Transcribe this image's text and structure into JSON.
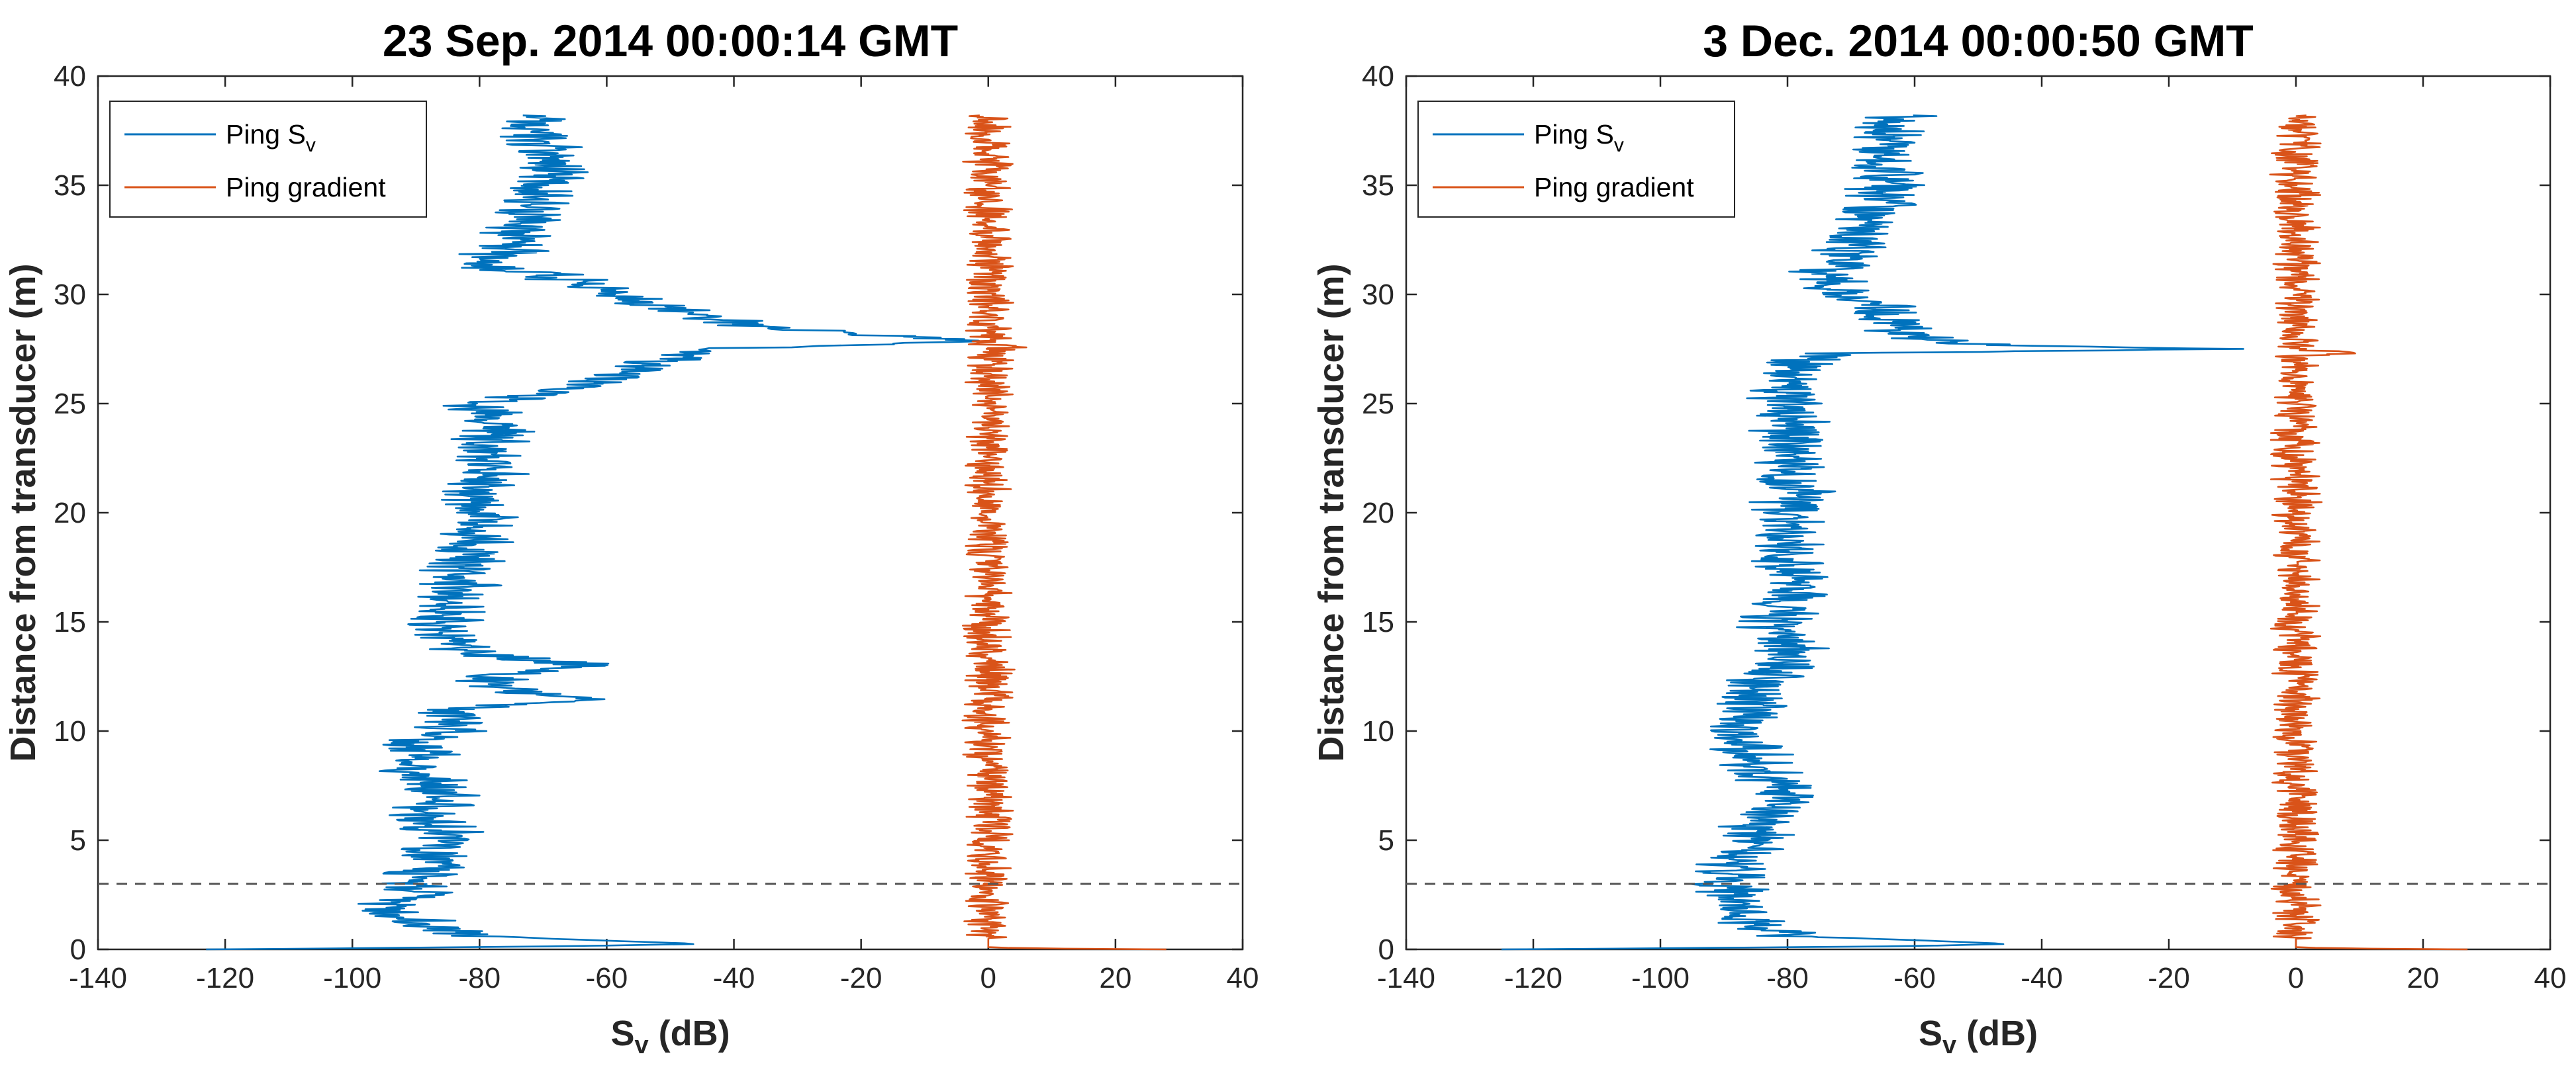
{
  "chart_data": [
    {
      "type": "line",
      "title": "23 Sep. 2014 00:00:14 GMT",
      "xlabel_main": "S",
      "xlabel_sub": "v",
      "xlabel_rest": " (dB)",
      "ylabel": "Distance from transducer (m)",
      "xlim": [
        -140,
        40
      ],
      "ylim": [
        0,
        40
      ],
      "xticks": [
        -140,
        -120,
        -100,
        -80,
        -60,
        -40,
        -20,
        0,
        20,
        40
      ],
      "yticks": [
        0,
        5,
        10,
        15,
        20,
        25,
        30,
        35,
        40
      ],
      "reference_line": {
        "y": 3,
        "style": "dashed"
      },
      "legend": {
        "position": "top-left",
        "entries": [
          {
            "label_main": "Ping S",
            "label_sub": "v"
          },
          {
            "label_main": "Ping gradient",
            "label_sub": ""
          }
        ]
      },
      "series": [
        {
          "name": "Ping Sv",
          "color": "#0072BD",
          "profile": [
            [
              0.0,
              -123
            ],
            [
              0.05,
              -100
            ],
            [
              0.15,
              -65
            ],
            [
              0.25,
              -45
            ],
            [
              0.4,
              -60
            ],
            [
              0.6,
              -80
            ],
            [
              1.0,
              -88
            ],
            [
              1.5,
              -92
            ],
            [
              2.0,
              -95
            ],
            [
              2.5,
              -88
            ],
            [
              3.0,
              -92
            ],
            [
              3.5,
              -90
            ],
            [
              4.0,
              -86
            ],
            [
              4.5,
              -88
            ],
            [
              5.0,
              -85
            ],
            [
              6.0,
              -88
            ],
            [
              7.0,
              -86
            ],
            [
              8.0,
              -90
            ],
            [
              9.0,
              -88
            ],
            [
              9.5,
              -92
            ],
            [
              10.0,
              -85
            ],
            [
              11.0,
              -83
            ],
            [
              11.5,
              -62
            ],
            [
              12.0,
              -80
            ],
            [
              12.5,
              -78
            ],
            [
              13.0,
              -62
            ],
            [
              13.5,
              -80
            ],
            [
              14.0,
              -84
            ],
            [
              15.0,
              -86
            ],
            [
              16.0,
              -84
            ],
            [
              17.0,
              -83
            ],
            [
              18.0,
              -82
            ],
            [
              19.0,
              -80
            ],
            [
              20.0,
              -79
            ],
            [
              21.0,
              -80
            ],
            [
              22.0,
              -78
            ],
            [
              23.0,
              -78
            ],
            [
              24.0,
              -77
            ],
            [
              25.0,
              -80
            ],
            [
              25.5,
              -68
            ],
            [
              26.0,
              -63
            ],
            [
              26.5,
              -55
            ],
            [
              27.0,
              -50
            ],
            [
              27.5,
              -44
            ],
            [
              27.8,
              -5
            ],
            [
              28.0,
              -8
            ],
            [
              28.2,
              -20
            ],
            [
              28.5,
              -35
            ],
            [
              29.0,
              -46
            ],
            [
              29.5,
              -52
            ],
            [
              30.0,
              -57
            ],
            [
              30.5,
              -64
            ],
            [
              31.0,
              -70
            ],
            [
              31.3,
              -82
            ],
            [
              32.0,
              -75
            ],
            [
              33.0,
              -73
            ],
            [
              34.0,
              -72
            ],
            [
              35.0,
              -70
            ],
            [
              36.0,
              -68
            ],
            [
              37.0,
              -70
            ],
            [
              38.0,
              -72
            ],
            [
              38.2,
              -70
            ]
          ],
          "noise_amplitude": 5
        },
        {
          "name": "Ping gradient",
          "color": "#D95319",
          "profile": [
            [
              0.0,
              28
            ],
            [
              0.05,
              5
            ],
            [
              0.1,
              0
            ],
            [
              27.5,
              0
            ],
            [
              27.6,
              6
            ],
            [
              27.7,
              0
            ],
            [
              38.2,
              0
            ]
          ],
          "noise_amplitude": 3
        }
      ]
    },
    {
      "type": "line",
      "title": "3 Dec. 2014 00:00:50 GMT",
      "xlabel_main": "S",
      "xlabel_sub": "v",
      "xlabel_rest": " (dB)",
      "ylabel": "Distance from transducer (m)",
      "xlim": [
        -140,
        40
      ],
      "ylim": [
        0,
        40
      ],
      "xticks": [
        -140,
        -120,
        -100,
        -80,
        -60,
        -40,
        -20,
        0,
        20,
        40
      ],
      "yticks": [
        0,
        5,
        10,
        15,
        20,
        25,
        30,
        35,
        40
      ],
      "reference_line": {
        "y": 3,
        "style": "dashed"
      },
      "legend": {
        "position": "top-left",
        "entries": [
          {
            "label_main": "Ping S",
            "label_sub": "v"
          },
          {
            "label_main": "Ping gradient",
            "label_sub": ""
          }
        ]
      },
      "series": [
        {
          "name": "Ping Sv",
          "color": "#0072BD",
          "profile": [
            [
              0.0,
              -125
            ],
            [
              0.05,
              -100
            ],
            [
              0.15,
              -60
            ],
            [
              0.25,
              -45
            ],
            [
              0.4,
              -58
            ],
            [
              0.6,
              -78
            ],
            [
              1.0,
              -86
            ],
            [
              2.0,
              -88
            ],
            [
              3.0,
              -90
            ],
            [
              4.0,
              -88
            ],
            [
              5.0,
              -86
            ],
            [
              6.0,
              -84
            ],
            [
              7.0,
              -80
            ],
            [
              8.0,
              -84
            ],
            [
              9.0,
              -86
            ],
            [
              10.0,
              -88
            ],
            [
              11.0,
              -86
            ],
            [
              12.0,
              -84
            ],
            [
              13.0,
              -80
            ],
            [
              14.0,
              -80
            ],
            [
              15.0,
              -82
            ],
            [
              16.0,
              -80
            ],
            [
              17.0,
              -79
            ],
            [
              18.0,
              -80
            ],
            [
              19.0,
              -81
            ],
            [
              20.0,
              -80
            ],
            [
              21.0,
              -79
            ],
            [
              22.0,
              -80
            ],
            [
              23.0,
              -80
            ],
            [
              24.0,
              -79
            ],
            [
              25.0,
              -80
            ],
            [
              26.0,
              -80
            ],
            [
              27.0,
              -78
            ],
            [
              27.3,
              -72
            ],
            [
              27.5,
              -10
            ],
            [
              27.7,
              -50
            ],
            [
              28.0,
              -60
            ],
            [
              28.5,
              -62
            ],
            [
              29.0,
              -64
            ],
            [
              29.5,
              -65
            ],
            [
              30.0,
              -72
            ],
            [
              31.0,
              -74
            ],
            [
              32.0,
              -70
            ],
            [
              33.0,
              -68
            ],
            [
              34.0,
              -66
            ],
            [
              35.0,
              -64
            ],
            [
              36.0,
              -66
            ],
            [
              37.0,
              -64
            ],
            [
              38.0,
              -64
            ],
            [
              38.2,
              -62
            ]
          ],
          "noise_amplitude": 5
        },
        {
          "name": "Ping gradient",
          "color": "#D95319",
          "profile": [
            [
              0.0,
              27
            ],
            [
              0.05,
              5
            ],
            [
              0.1,
              0
            ],
            [
              27.2,
              0
            ],
            [
              27.35,
              14
            ],
            [
              27.45,
              0
            ],
            [
              38.2,
              0
            ]
          ],
          "noise_amplitude": 3
        }
      ]
    }
  ]
}
